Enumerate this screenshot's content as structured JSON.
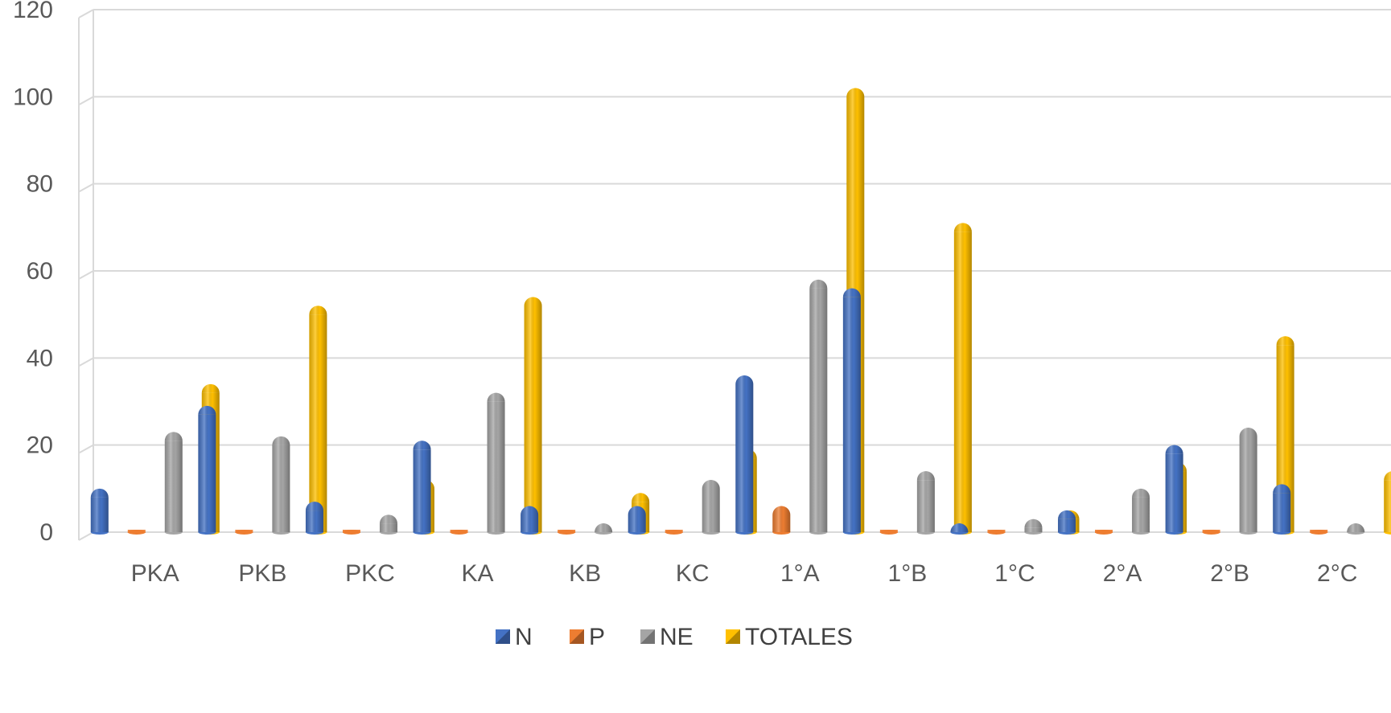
{
  "chart_data": {
    "type": "bar",
    "categories": [
      "PKA",
      "PKB",
      "PKC",
      "KA",
      "KB",
      "KC",
      "1°A",
      "1°B",
      "1°C",
      "2°A",
      "2°B",
      "2°C"
    ],
    "series": [
      {
        "name": "N",
        "color": "#4472C4",
        "values": [
          10,
          29,
          7,
          21,
          6,
          6,
          36,
          56,
          1,
          5,
          20,
          11
        ]
      },
      {
        "name": "P",
        "color": "#ED7D31",
        "values": [
          0,
          0,
          0,
          0,
          0,
          0,
          6,
          0,
          0,
          0,
          0,
          0
        ]
      },
      {
        "name": "NE",
        "color": "#A5A5A5",
        "values": [
          23,
          22,
          4,
          32,
          2,
          12,
          58,
          14,
          3,
          10,
          24,
          2
        ]
      },
      {
        "name": "TOTALES",
        "color": "#FFC000",
        "values": [
          34,
          52,
          12,
          54,
          9,
          19,
          102,
          71,
          5,
          16,
          45,
          14
        ]
      }
    ],
    "ylim": [
      0,
      120
    ],
    "yticks": [
      0,
      20,
      40,
      60,
      80,
      100,
      120
    ],
    "grid": true,
    "legend_position": "bottom"
  }
}
